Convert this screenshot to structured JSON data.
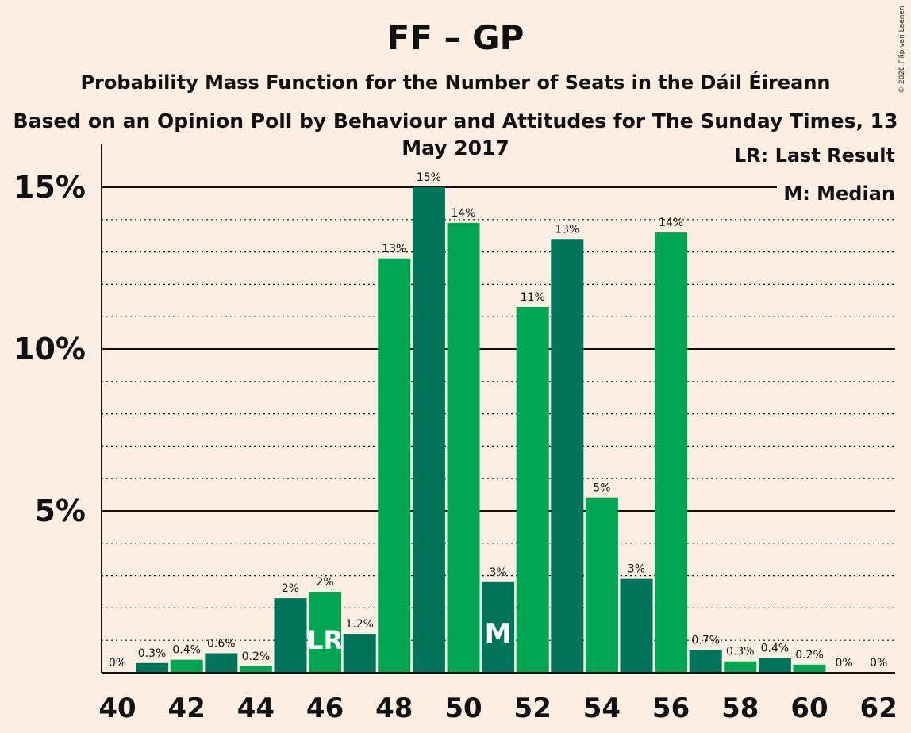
{
  "header": {
    "title": "FF – GP",
    "subtitle": "Probability Mass Function for the Number of Seats in the Dáil Éireann",
    "subtitle2": "Based on an Opinion Poll by Behaviour and Attitudes for The Sunday Times, 13 May 2017",
    "copyright": "© 2020 Filip van Laenen"
  },
  "legend": {
    "last_result": "LR: Last Result",
    "median": "M: Median"
  },
  "colors": {
    "background": "#fdeee3",
    "bar_light": "#00a651",
    "bar_dark": "#00735b",
    "marker_text": "#ffffff"
  },
  "chart_data": {
    "type": "bar",
    "x": [
      40,
      41,
      42,
      43,
      44,
      45,
      46,
      47,
      48,
      49,
      50,
      51,
      52,
      53,
      54,
      55,
      56,
      57,
      58,
      59,
      60,
      61,
      62
    ],
    "values": [
      0,
      0.3,
      0.4,
      0.6,
      0.2,
      2.3,
      2.5,
      1.2,
      12.8,
      15.0,
      13.9,
      2.8,
      11.3,
      13.4,
      5.4,
      2.9,
      13.6,
      0.7,
      0.35,
      0.45,
      0.25,
      0,
      0
    ],
    "labels": [
      "0%",
      "0.3%",
      "0.4%",
      "0.6%",
      "0.2%",
      "2%",
      "2%",
      "1.2%",
      "13%",
      "15%",
      "14%",
      "3%",
      "11%",
      "13%",
      "5%",
      "3%",
      "14%",
      "0.7%",
      "0.3%",
      "0.4%",
      "0.2%",
      "0%",
      "0%"
    ],
    "x_tick_labels": [
      "40",
      "42",
      "44",
      "46",
      "48",
      "50",
      "52",
      "54",
      "56",
      "58",
      "60",
      "62"
    ],
    "y_tick_labels": [
      "5%",
      "10%",
      "15%"
    ],
    "ylim": [
      0,
      16.3
    ],
    "last_result_seat": 46,
    "last_result_label": "LR",
    "median_seat": 51,
    "median_label": "M",
    "xlabel": "",
    "ylabel": ""
  }
}
